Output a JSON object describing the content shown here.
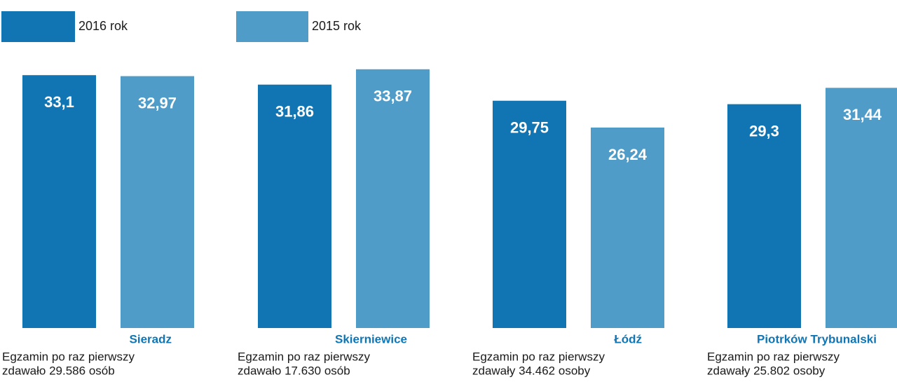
{
  "chart_data": {
    "type": "bar",
    "categories": [
      "Sieradz",
      "Skierniewice",
      "Łódź",
      "Piotrków Trybunalski"
    ],
    "series": [
      {
        "name": "2016 rok",
        "values": [
          33.1,
          31.86,
          29.75,
          29.3
        ],
        "value_labels": [
          "33,1",
          "31,86",
          "29,75",
          "29,3"
        ],
        "color": "#1075b2"
      },
      {
        "name": "2015 rok",
        "values": [
          32.97,
          33.87,
          26.24,
          31.44
        ],
        "value_labels": [
          "32,97",
          "33,87",
          "26,24",
          "31,44"
        ],
        "color": "#4f9cc9"
      }
    ],
    "notes": [
      [
        "Egzamin po raz pierwszy",
        "zdawało 29.586 osób"
      ],
      [
        "Egzamin po raz pierwszy",
        "zdawało 17.630 osób"
      ],
      [
        "Egzamin po raz pierwszy",
        "zdawały 34.462 osoby"
      ],
      [
        "Egzamin po raz pierwszy",
        "zdawały 25.802 osoby"
      ]
    ],
    "category_label_color": "#1075b2",
    "legend_position": "top-left",
    "grid": false
  }
}
